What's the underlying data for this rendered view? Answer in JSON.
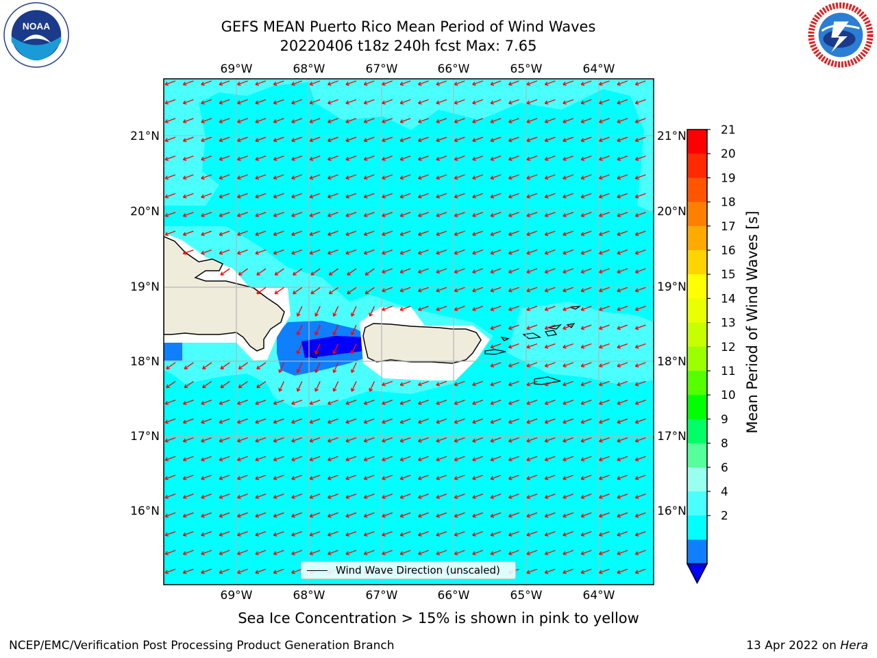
{
  "header": {
    "title_line1": "GEFS MEAN Puerto Rico Mean Period of Wind Waves",
    "title_line2": "20220406 t18z 240h fcst   Max: 7.65"
  },
  "logos": {
    "noaa": {
      "text": "NOAA",
      "ring_text": "NATIONAL OCEANIC AND ATMOSPHERIC ADMINISTRATION · U.S. DEPARTMENT OF COMMERCE"
    },
    "nws": {
      "ring_text": "NATIONAL WEATHER SERVICE"
    }
  },
  "map": {
    "lon_ticks": [
      "69°W",
      "68°W",
      "67°W",
      "66°W",
      "65°W",
      "64°W"
    ],
    "lat_ticks": [
      "21°N",
      "20°N",
      "19°N",
      "18°N",
      "17°N",
      "16°N"
    ],
    "legend_label": "Wind Wave Direction (unscaled)",
    "arrow_color": "#ff0000",
    "land_color": "#efecdc",
    "ocean_color": "#00ffff",
    "light_cyan": "#4cffff",
    "blue_band": "#0f7ffd",
    "dark_blue_band": "#0000ff"
  },
  "colorbar": {
    "label": "Mean Period of Wind Waves [s]",
    "ticks": [
      "21",
      "20",
      "19",
      "18",
      "17",
      "16",
      "15",
      "14",
      "13",
      "12",
      "11",
      "10",
      "9",
      "8",
      "6",
      "4",
      "2"
    ],
    "colors": [
      "#ff0000",
      "#ff2a00",
      "#ff5500",
      "#ff7f00",
      "#ffaa00",
      "#ffd400",
      "#ffff00",
      "#eaff00",
      "#c8ff00",
      "#9bff00",
      "#55ff00",
      "#00ff00",
      "#00ff66",
      "#55ff99",
      "#99ffee",
      "#4cffff",
      "#00ffff",
      "#0f7ffd"
    ],
    "under_color": "#0000ff"
  },
  "footer": {
    "caption": "Sea Ice Concentration > 15% is shown in pink to yellow",
    "left": "NCEP/EMC/Verification Post Processing Product Generation Branch",
    "right_prefix": "13 Apr 2022 on ",
    "right_host": "Hera"
  }
}
